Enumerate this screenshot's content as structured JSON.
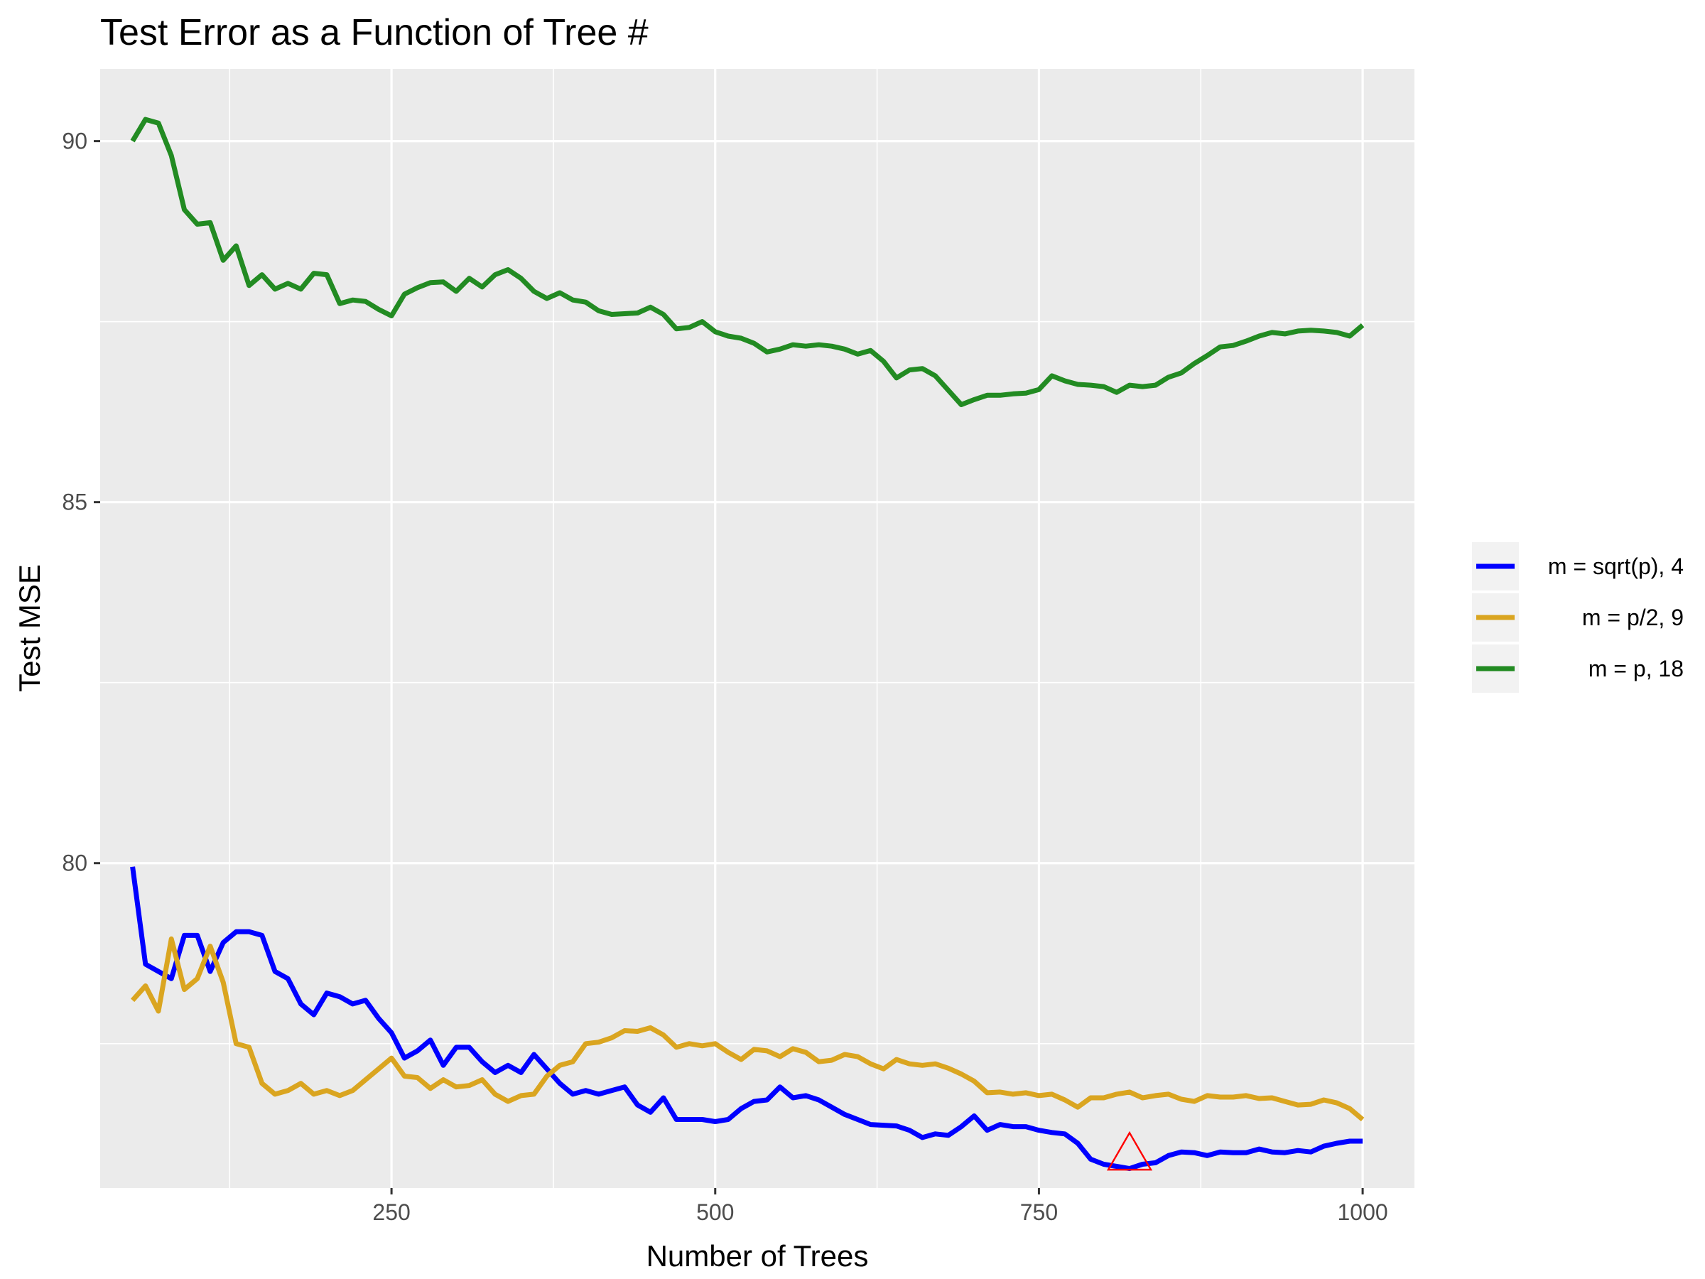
{
  "chart_data": {
    "type": "line",
    "title": "Test Error as a Function of Tree #",
    "xlabel": "Number of Trees",
    "ylabel": "Test MSE",
    "xlim": [
      25,
      1040
    ],
    "ylim": [
      75.5,
      91.0
    ],
    "x_ticks": [
      250,
      500,
      750,
      1000
    ],
    "x_tick_labels": [
      "250",
      "500",
      "750",
      "1000"
    ],
    "y_ticks": [
      80,
      85,
      90
    ],
    "y_tick_labels": [
      "80",
      "85",
      "90"
    ],
    "grid": true,
    "legend_position": "right",
    "background_color": "#EBEBEB",
    "grid_color": "#FFFFFF",
    "series": [
      {
        "name": "m = sqrt(p), 4",
        "color": "#0000FF",
        "x": [
          50,
          60,
          70,
          80,
          90,
          100,
          110,
          120,
          130,
          140,
          150,
          160,
          170,
          180,
          190,
          200,
          210,
          220,
          230,
          240,
          250,
          260,
          270,
          280,
          290,
          300,
          310,
          320,
          330,
          340,
          350,
          360,
          370,
          380,
          390,
          400,
          410,
          420,
          430,
          440,
          450,
          460,
          470,
          480,
          490,
          500,
          510,
          520,
          530,
          540,
          550,
          560,
          570,
          580,
          590,
          600,
          610,
          620,
          630,
          640,
          650,
          660,
          670,
          680,
          690,
          700,
          710,
          720,
          730,
          740,
          750,
          760,
          770,
          780,
          790,
          800,
          810,
          820,
          830,
          840,
          850,
          860,
          870,
          880,
          890,
          900,
          910,
          920,
          930,
          940,
          950,
          960,
          970,
          980,
          990,
          1000
        ],
        "y": [
          79.95,
          78.6,
          78.5,
          78.4,
          79.0,
          79.0,
          78.5,
          78.9,
          79.05,
          79.05,
          79.0,
          78.5,
          78.4,
          78.05,
          77.9,
          78.2,
          78.15,
          78.05,
          78.1,
          77.85,
          77.65,
          77.3,
          77.4,
          77.55,
          77.2,
          77.45,
          77.45,
          77.25,
          77.1,
          77.2,
          77.1,
          77.35,
          77.15,
          76.95,
          76.8,
          76.85,
          76.8,
          76.85,
          76.9,
          76.65,
          76.55,
          76.75,
          76.45,
          76.45,
          76.45,
          76.42,
          76.45,
          76.6,
          76.7,
          76.72,
          76.9,
          76.75,
          76.78,
          76.72,
          76.62,
          76.52,
          76.45,
          76.38,
          76.37,
          76.36,
          76.3,
          76.2,
          76.25,
          76.23,
          76.35,
          76.5,
          76.3,
          76.38,
          76.35,
          76.35,
          76.3,
          76.27,
          76.25,
          76.12,
          75.9,
          75.83,
          75.8,
          75.77,
          75.83,
          75.85,
          75.95,
          76.0,
          75.99,
          75.95,
          76.0,
          75.99,
          75.99,
          76.04,
          76.0,
          75.99,
          76.02,
          76.0,
          76.08,
          76.12,
          76.15,
          76.15
        ]
      },
      {
        "name": "m = p/2, 9",
        "color": "#DAA520",
        "x": [
          50,
          60,
          70,
          80,
          90,
          100,
          110,
          120,
          130,
          140,
          150,
          160,
          170,
          180,
          190,
          200,
          210,
          220,
          230,
          240,
          250,
          260,
          270,
          280,
          290,
          300,
          310,
          320,
          330,
          340,
          350,
          360,
          370,
          380,
          390,
          400,
          410,
          420,
          430,
          440,
          450,
          460,
          470,
          480,
          490,
          500,
          510,
          520,
          530,
          540,
          550,
          560,
          570,
          580,
          590,
          600,
          610,
          620,
          630,
          640,
          650,
          660,
          670,
          680,
          690,
          700,
          710,
          720,
          730,
          740,
          750,
          760,
          770,
          780,
          790,
          800,
          810,
          820,
          830,
          840,
          850,
          860,
          870,
          880,
          890,
          900,
          910,
          920,
          930,
          940,
          950,
          960,
          970,
          980,
          990,
          1000
        ],
        "y": [
          78.1,
          78.3,
          77.95,
          78.95,
          78.25,
          78.4,
          78.85,
          78.35,
          77.5,
          77.45,
          76.95,
          76.8,
          76.85,
          76.95,
          76.8,
          76.85,
          76.78,
          76.85,
          77.0,
          77.15,
          77.3,
          77.05,
          77.03,
          76.88,
          77.0,
          76.9,
          76.92,
          77.0,
          76.8,
          76.7,
          76.78,
          76.8,
          77.05,
          77.2,
          77.25,
          77.5,
          77.52,
          77.58,
          77.68,
          77.67,
          77.72,
          77.62,
          77.45,
          77.5,
          77.47,
          77.5,
          77.38,
          77.28,
          77.42,
          77.4,
          77.32,
          77.43,
          77.38,
          77.25,
          77.27,
          77.35,
          77.32,
          77.22,
          77.15,
          77.28,
          77.22,
          77.2,
          77.22,
          77.16,
          77.08,
          76.98,
          76.82,
          76.83,
          76.8,
          76.82,
          76.78,
          76.8,
          76.72,
          76.62,
          76.75,
          76.75,
          76.8,
          76.83,
          76.75,
          76.78,
          76.8,
          76.73,
          76.7,
          76.78,
          76.76,
          76.76,
          76.78,
          76.74,
          76.75,
          76.7,
          76.65,
          76.66,
          76.72,
          76.68,
          76.6,
          76.45
        ]
      },
      {
        "name": "m = p, 18",
        "color": "#228B22",
        "x": [
          50,
          60,
          70,
          80,
          90,
          100,
          110,
          120,
          130,
          140,
          150,
          160,
          170,
          180,
          190,
          200,
          210,
          220,
          230,
          240,
          250,
          260,
          270,
          280,
          290,
          300,
          310,
          320,
          330,
          340,
          350,
          360,
          370,
          380,
          390,
          400,
          410,
          420,
          430,
          440,
          450,
          460,
          470,
          480,
          490,
          500,
          510,
          520,
          530,
          540,
          550,
          560,
          570,
          580,
          590,
          600,
          610,
          620,
          630,
          640,
          650,
          660,
          670,
          680,
          690,
          700,
          710,
          720,
          730,
          740,
          750,
          760,
          770,
          780,
          790,
          800,
          810,
          820,
          830,
          840,
          850,
          860,
          870,
          880,
          890,
          900,
          910,
          920,
          930,
          940,
          950,
          960,
          970,
          980,
          990,
          1000
        ],
        "y": [
          90.0,
          90.3,
          90.25,
          89.8,
          89.05,
          88.85,
          88.87,
          88.35,
          88.55,
          88.0,
          88.15,
          87.95,
          88.03,
          87.95,
          88.17,
          88.15,
          87.75,
          87.8,
          87.78,
          87.67,
          87.58,
          87.88,
          87.97,
          88.04,
          88.05,
          87.92,
          88.1,
          87.98,
          88.15,
          88.22,
          88.1,
          87.92,
          87.82,
          87.9,
          87.8,
          87.77,
          87.65,
          87.6,
          87.61,
          87.62,
          87.7,
          87.6,
          87.4,
          87.42,
          87.5,
          87.36,
          87.3,
          87.27,
          87.2,
          87.08,
          87.12,
          87.18,
          87.16,
          87.18,
          87.16,
          87.12,
          87.05,
          87.1,
          86.95,
          86.72,
          86.83,
          86.85,
          86.75,
          86.55,
          86.35,
          86.42,
          86.48,
          86.48,
          86.5,
          86.51,
          86.56,
          86.75,
          86.68,
          86.63,
          86.62,
          86.6,
          86.52,
          86.62,
          86.6,
          86.62,
          86.73,
          86.79,
          86.92,
          87.03,
          87.15,
          87.17,
          87.23,
          87.3,
          87.35,
          87.33,
          87.37,
          87.38,
          87.37,
          87.35,
          87.3,
          87.45
        ]
      }
    ],
    "marker": {
      "shape": "triangle",
      "color": "#FF0000",
      "x": 820,
      "y": 75.95
    }
  }
}
